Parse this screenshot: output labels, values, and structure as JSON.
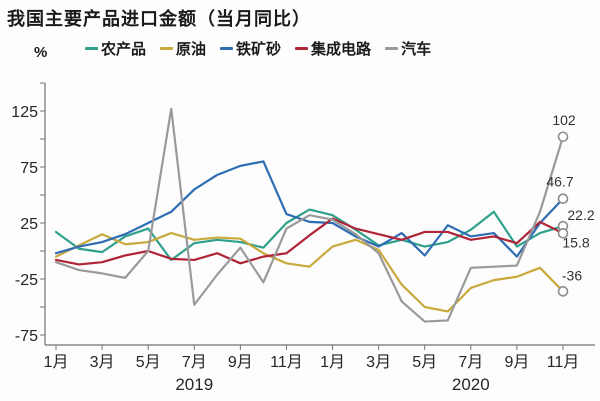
{
  "title": "我国主要产品进口金额（当月同比）",
  "y_axis_unit": "%",
  "chart_data": {
    "type": "line",
    "title": "我国主要产品进口金额（当月同比）",
    "ylabel": "%",
    "grid": false,
    "legend_position": "top",
    "x_axis": {
      "months": [
        "2019-01",
        "2019-02",
        "2019-03",
        "2019-04",
        "2019-05",
        "2019-06",
        "2019-07",
        "2019-08",
        "2019-09",
        "2019-10",
        "2019-11",
        "2019-12",
        "2020-01",
        "2020-02",
        "2020-03",
        "2020-04",
        "2020-05",
        "2020-06",
        "2020-07",
        "2020-08",
        "2020-09",
        "2020-10",
        "2020-11"
      ],
      "tick_indices": [
        0,
        2,
        4,
        6,
        8,
        10,
        12,
        14,
        16,
        18,
        20,
        22
      ],
      "tick_labels": [
        "1月",
        "3月",
        "5月",
        "7月",
        "9月",
        "11月",
        "1月",
        "3月",
        "5月",
        "7月",
        "9月",
        "11月"
      ],
      "year_labels": [
        "2019",
        "2020"
      ],
      "year_indices": [
        6,
        18
      ]
    },
    "y_axis": {
      "ticks": [
        150,
        125,
        100,
        75,
        50,
        25,
        0,
        -25,
        -50,
        -75
      ],
      "labels": [
        125,
        75,
        25,
        -25,
        -75
      ],
      "ylim": [
        -84,
        150
      ]
    },
    "series": [
      {
        "key": "agricultural-products",
        "name": "农产品",
        "color": "#2FA08C",
        "end_label": "22.2",
        "label_offset": [
          18,
          -6
        ],
        "values": [
          17,
          2,
          -1,
          13,
          20,
          -8,
          7,
          10,
          8,
          3,
          25,
          37,
          32,
          19,
          5,
          10,
          4,
          8,
          19,
          35,
          4,
          16,
          22.2
        ]
      },
      {
        "key": "crude-oil",
        "name": "原油",
        "color": "#C9A83C",
        "end_label": "-36",
        "label_offset": [
          9,
          -11
        ],
        "values": [
          -5,
          5,
          15,
          6,
          8,
          16,
          10,
          12,
          11,
          -2,
          -11,
          -14,
          4,
          10,
          1,
          -30,
          -50,
          -54,
          -33,
          -26,
          -23,
          -15,
          -36
        ]
      },
      {
        "key": "iron-ore",
        "name": "铁矿砂",
        "color": "#2E6DB4",
        "end_label": "46.7",
        "label_offset": [
          -3,
          -12
        ],
        "values": [
          -2,
          4,
          8,
          15,
          25,
          35,
          55,
          68,
          76,
          80,
          33,
          26,
          25,
          13,
          4,
          16,
          -4,
          23,
          13,
          16,
          -5,
          25,
          46.7
        ]
      },
      {
        "key": "integrated-circuits",
        "name": "集成电路",
        "color": "#B02437",
        "end_label": "15.8",
        "label_offset": [
          13,
          14
        ],
        "values": [
          -8,
          -12,
          -10,
          -4,
          0,
          -7,
          -8,
          -2,
          -11,
          -5,
          -2,
          14,
          29,
          20,
          15,
          10,
          17,
          17,
          10,
          13,
          7,
          26,
          15.8
        ]
      },
      {
        "key": "automobiles",
        "name": "汽车",
        "color": "#9A9A9A",
        "end_label": "102",
        "label_offset": [
          1,
          -12
        ],
        "values": [
          -10,
          -17,
          -20,
          -24,
          0,
          127,
          -48,
          -21,
          3,
          -28,
          20,
          32,
          28,
          15,
          -2,
          -45,
          -63,
          -62,
          -15,
          -14,
          -13,
          35,
          102
        ]
      }
    ]
  }
}
